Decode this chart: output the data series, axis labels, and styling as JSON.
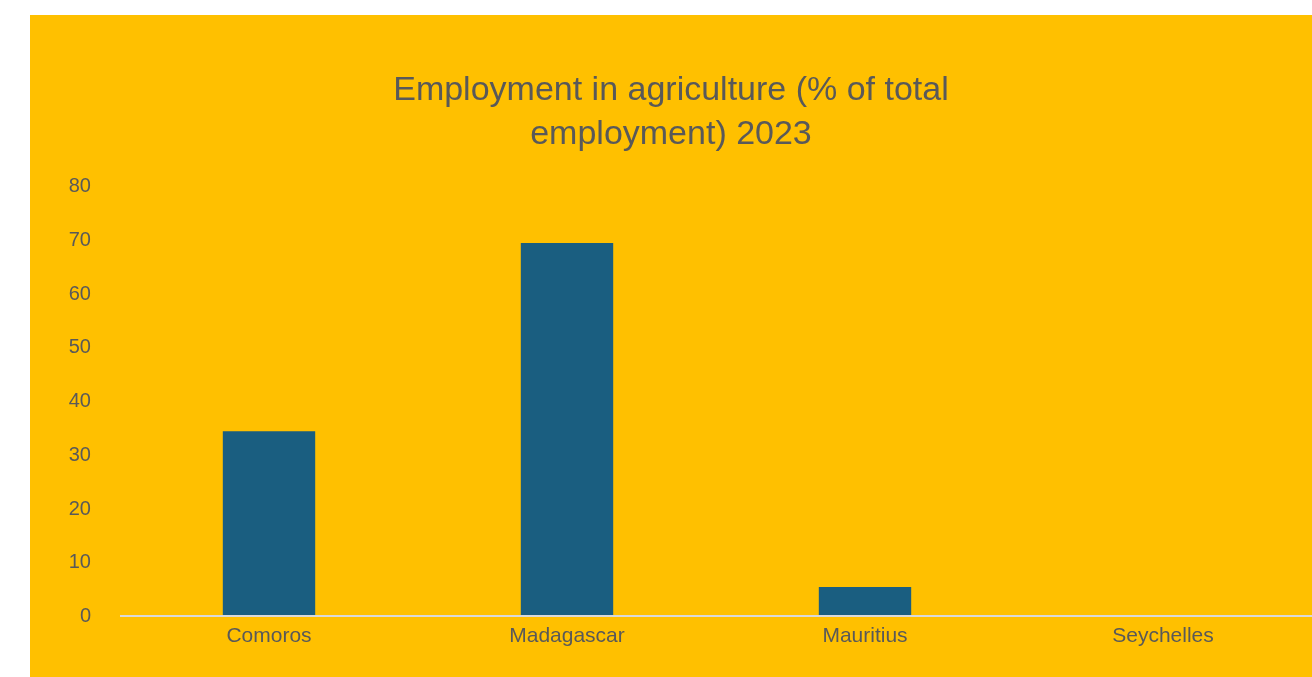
{
  "chart_data": {
    "type": "bar",
    "title": "Employment in agriculture (% of total\nemployment) 2023",
    "categories": [
      "Comoros",
      "Madagascar",
      "Mauritius",
      "Seychelles"
    ],
    "values": [
      34.2,
      69.2,
      5.2,
      null
    ],
    "color": "#1a5e80",
    "ylim": [
      0,
      80
    ],
    "yticks": [
      0,
      10,
      20,
      30,
      40,
      50,
      60,
      70,
      80
    ],
    "grid": false
  }
}
